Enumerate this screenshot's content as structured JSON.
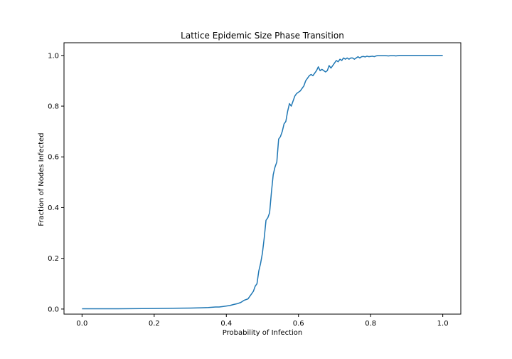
{
  "chart_data": {
    "type": "line",
    "title": "Lattice Epidemic Size Phase Transition",
    "xlabel": "Probability of Infection",
    "ylabel": "Fraction of Nodes Infected",
    "xlim": [
      -0.05,
      1.05
    ],
    "ylim": [
      -0.02,
      1.05
    ],
    "xticks": [
      0.0,
      0.2,
      0.4,
      0.6,
      0.8,
      1.0
    ],
    "xtick_labels": [
      "0.0",
      "0.2",
      "0.4",
      "0.6",
      "0.8",
      "1.0"
    ],
    "yticks": [
      0.0,
      0.2,
      0.4,
      0.6,
      0.8,
      1.0
    ],
    "ytick_labels": [
      "0.0",
      "0.2",
      "0.4",
      "0.6",
      "0.8",
      "1.0"
    ],
    "grid": false,
    "line_color": "#1f77b4",
    "series": [
      {
        "x": [
          0.0,
          0.1,
          0.2,
          0.25,
          0.3,
          0.33,
          0.35,
          0.37,
          0.38,
          0.39,
          0.4,
          0.41,
          0.42,
          0.43,
          0.44,
          0.45,
          0.46,
          0.465,
          0.47,
          0.475,
          0.48,
          0.485,
          0.49,
          0.495,
          0.5,
          0.505,
          0.51,
          0.515,
          0.52,
          0.525,
          0.53,
          0.535,
          0.54,
          0.545,
          0.55,
          0.555,
          0.56,
          0.565,
          0.57,
          0.575,
          0.58,
          0.585,
          0.59,
          0.595,
          0.6,
          0.605,
          0.61,
          0.615,
          0.62,
          0.625,
          0.63,
          0.635,
          0.64,
          0.645,
          0.65,
          0.655,
          0.66,
          0.665,
          0.67,
          0.675,
          0.68,
          0.685,
          0.69,
          0.695,
          0.7,
          0.705,
          0.71,
          0.715,
          0.72,
          0.725,
          0.73,
          0.735,
          0.74,
          0.745,
          0.75,
          0.755,
          0.76,
          0.765,
          0.77,
          0.775,
          0.78,
          0.785,
          0.79,
          0.795,
          0.8,
          0.805,
          0.81,
          0.815,
          0.82,
          0.83,
          0.84,
          0.85,
          0.855,
          0.86,
          0.865,
          0.87,
          0.875,
          0.88,
          0.89,
          0.9,
          0.95,
          1.0
        ],
        "y": [
          0.001,
          0.001,
          0.002,
          0.003,
          0.004,
          0.005,
          0.006,
          0.008,
          0.008,
          0.01,
          0.012,
          0.014,
          0.018,
          0.021,
          0.026,
          0.035,
          0.04,
          0.05,
          0.06,
          0.07,
          0.09,
          0.1,
          0.15,
          0.18,
          0.22,
          0.28,
          0.35,
          0.36,
          0.38,
          0.46,
          0.53,
          0.56,
          0.58,
          0.67,
          0.68,
          0.7,
          0.73,
          0.74,
          0.78,
          0.81,
          0.8,
          0.82,
          0.84,
          0.85,
          0.855,
          0.86,
          0.87,
          0.88,
          0.9,
          0.91,
          0.92,
          0.925,
          0.92,
          0.93,
          0.94,
          0.955,
          0.94,
          0.945,
          0.94,
          0.935,
          0.94,
          0.96,
          0.95,
          0.96,
          0.97,
          0.98,
          0.975,
          0.985,
          0.98,
          0.99,
          0.985,
          0.99,
          0.985,
          0.99,
          0.99,
          0.985,
          0.99,
          0.995,
          0.99,
          0.995,
          0.996,
          0.994,
          0.997,
          0.995,
          0.996,
          0.997,
          0.995,
          0.998,
          0.999,
          0.999,
          0.999,
          0.998,
          0.999,
          0.999,
          0.999,
          0.998,
          0.999,
          1.0,
          1.0,
          1.0,
          1.0,
          1.0
        ]
      }
    ]
  }
}
